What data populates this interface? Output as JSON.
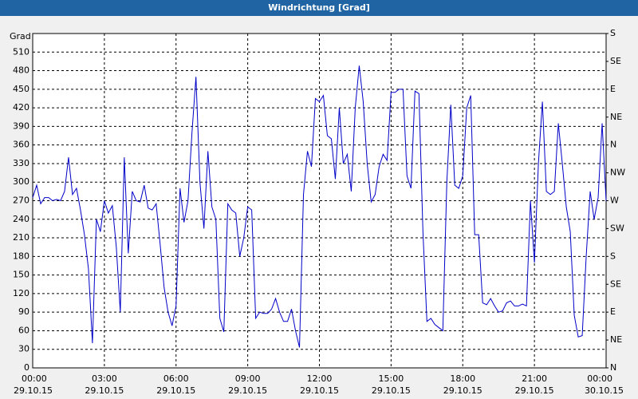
{
  "chart_data": {
    "type": "line",
    "title": "Windrichtung [Grad]",
    "ylabel": "Grad",
    "x": [
      0,
      10,
      20,
      30,
      40,
      50,
      60,
      70,
      80,
      90,
      100,
      110,
      120,
      130,
      140,
      150,
      160,
      170,
      180,
      190,
      200,
      210,
      220,
      230,
      240,
      250,
      260,
      270,
      280,
      290,
      300,
      310,
      320,
      330,
      340,
      350,
      360,
      370,
      380,
      390,
      400,
      410,
      420,
      430,
      440,
      450,
      460,
      470,
      480,
      490,
      500,
      510,
      520,
      530,
      540,
      550,
      560,
      570,
      580,
      590,
      600,
      610,
      620,
      630,
      640,
      650,
      660,
      670,
      680,
      690,
      700,
      710,
      720,
      730,
      740,
      750,
      760,
      770,
      780,
      790,
      800,
      810,
      820,
      830,
      840,
      850,
      860,
      870,
      880,
      890,
      900,
      910,
      920,
      930,
      940,
      950,
      960,
      970,
      980,
      990,
      1000,
      1010,
      1020,
      1030,
      1040,
      1050,
      1060,
      1070,
      1080,
      1090,
      1100,
      1110,
      1120,
      1130,
      1140,
      1150,
      1160,
      1170,
      1180,
      1190,
      1200,
      1210,
      1220,
      1230,
      1240,
      1250,
      1260,
      1270,
      1280,
      1290,
      1300,
      1310,
      1320,
      1330,
      1340,
      1350,
      1360,
      1370,
      1380,
      1390,
      1400,
      1410,
      1420,
      1430,
      1440
    ],
    "series": [
      {
        "color": "#0000c8",
        "values": [
          275,
          295,
          265,
          275,
          275,
          270,
          272,
          270,
          285,
          340,
          280,
          290,
          255,
          215,
          160,
          40,
          240,
          220,
          270,
          250,
          262,
          195,
          90,
          340,
          185,
          285,
          270,
          268,
          295,
          258,
          255,
          265,
          200,
          130,
          90,
          68,
          100,
          290,
          235,
          270,
          380,
          470,
          300,
          225,
          350,
          260,
          240,
          80,
          58,
          265,
          255,
          250,
          180,
          210,
          260,
          255,
          80,
          90,
          88,
          88,
          95,
          112,
          90,
          75,
          75,
          95,
          60,
          33,
          280,
          350,
          325,
          435,
          430,
          440,
          375,
          370,
          305,
          420,
          330,
          345,
          285,
          420,
          488,
          430,
          330,
          268,
          280,
          325,
          345,
          335,
          445,
          445,
          450,
          450,
          310,
          290,
          447,
          443,
          220,
          75,
          80,
          70,
          65,
          60,
          300,
          425,
          295,
          290,
          310,
          420,
          440,
          215,
          215,
          105,
          102,
          112,
          100,
          90,
          92,
          105,
          108,
          100,
          100,
          103,
          100,
          270,
          170,
          330,
          430,
          285,
          280,
          285,
          395,
          330,
          260,
          220,
          85,
          50,
          52,
          180,
          285,
          240,
          275,
          395,
          270
        ]
      }
    ],
    "xlim": [
      0,
      1440
    ],
    "xticks": [
      {
        "value": 0,
        "label": "00:00"
      },
      {
        "value": 180,
        "label": "03:00"
      },
      {
        "value": 360,
        "label": "06:00"
      },
      {
        "value": 540,
        "label": "09:00"
      },
      {
        "value": 720,
        "label": "12:00"
      },
      {
        "value": 900,
        "label": "15:00"
      },
      {
        "value": 1080,
        "label": "18:00"
      },
      {
        "value": 1260,
        "label": "21:00"
      },
      {
        "value": 1440,
        "label": "00:00"
      }
    ],
    "xtick_dates": [
      "29.10.15",
      "29.10.15",
      "29.10.15",
      "29.10.15",
      "29.10.15",
      "29.10.15",
      "29.10.15",
      "29.10.15",
      "30.10.15"
    ],
    "ylim": [
      0,
      540
    ],
    "yticks": [
      0,
      30,
      60,
      90,
      120,
      150,
      180,
      210,
      240,
      270,
      300,
      330,
      360,
      390,
      420,
      450,
      480,
      510
    ],
    "y2lim": [
      0,
      540
    ],
    "y2ticks": [
      {
        "value": 0,
        "label": "N"
      },
      {
        "value": 45,
        "label": "NE"
      },
      {
        "value": 90,
        "label": "E"
      },
      {
        "value": 135,
        "label": "SE"
      },
      {
        "value": 180,
        "label": "S"
      },
      {
        "value": 225,
        "label": "SW"
      },
      {
        "value": 270,
        "label": "W"
      },
      {
        "value": 315,
        "label": "NW"
      },
      {
        "value": 360,
        "label": "N"
      },
      {
        "value": 405,
        "label": "NE"
      },
      {
        "value": 450,
        "label": "E"
      },
      {
        "value": 495,
        "label": "SE"
      },
      {
        "value": 540,
        "label": "S"
      }
    ],
    "grid": true
  }
}
